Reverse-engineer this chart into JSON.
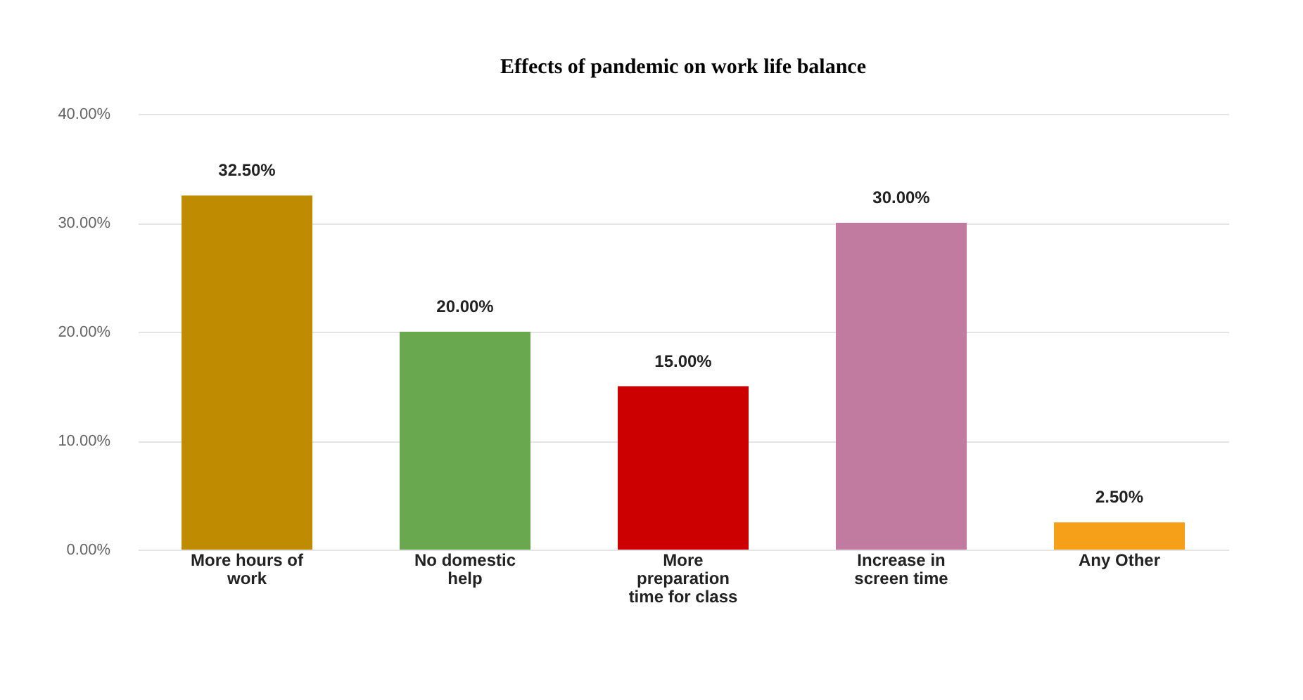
{
  "chart_data": {
    "type": "bar",
    "title": "Effects of pandemic on work life balance",
    "categories": [
      "More hours of work",
      "No domestic help",
      "More preparation time for class",
      "Increase in screen time",
      "Any Other"
    ],
    "values": [
      32.5,
      20,
      15,
      30,
      2.5
    ],
    "colors": [
      "#bf8b00",
      "#6aa84f",
      "#cc0000",
      "#c27ba0",
      "#f6a01a"
    ],
    "value_labels": [
      "32.50%",
      "20.00%",
      "15.00%",
      "30.00%",
      "2.50%"
    ],
    "ylim": [
      0,
      40
    ],
    "yticks": [
      {
        "value": 0,
        "label": "0.00%"
      },
      {
        "value": 10,
        "label": "10.00%"
      },
      {
        "value": 20,
        "label": "20.00%"
      },
      {
        "value": 30,
        "label": "30.00%"
      },
      {
        "value": 40,
        "label": "40.00%"
      }
    ],
    "grid": "y"
  }
}
